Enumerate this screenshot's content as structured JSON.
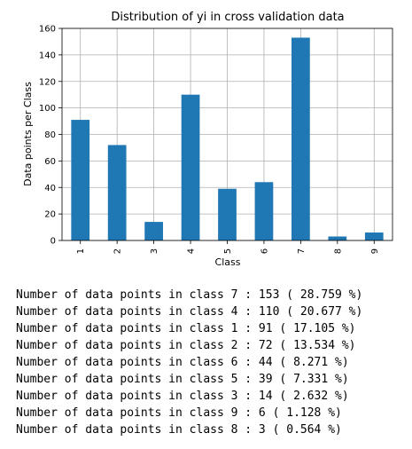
{
  "chart_data": {
    "type": "bar",
    "title": "Distribution of yi in cross validation data",
    "xlabel": "Class",
    "ylabel": "Data points per Class",
    "categories": [
      "1",
      "2",
      "3",
      "4",
      "5",
      "6",
      "7",
      "8",
      "9"
    ],
    "values": [
      91,
      72,
      14,
      110,
      39,
      44,
      153,
      3,
      6
    ],
    "ylim": [
      0,
      160
    ],
    "yticks": [
      0,
      20,
      40,
      60,
      80,
      100,
      120,
      140,
      160
    ],
    "grid": true,
    "bar_color": "#1f77b4"
  },
  "output_lines": [
    "Number of data points in class 7 : 153 ( 28.759 %)",
    "Number of data points in class 4 : 110 ( 20.677 %)",
    "Number of data points in class 1 : 91 ( 17.105 %)",
    "Number of data points in class 2 : 72 ( 13.534 %)",
    "Number of data points in class 6 : 44 ( 8.271 %)",
    "Number of data points in class 5 : 39 ( 7.331 %)",
    "Number of data points in class 3 : 14 ( 2.632 %)",
    "Number of data points in class 9 : 6 ( 1.128 %)",
    "Number of data points in class 8 : 3 ( 0.564 %)"
  ]
}
